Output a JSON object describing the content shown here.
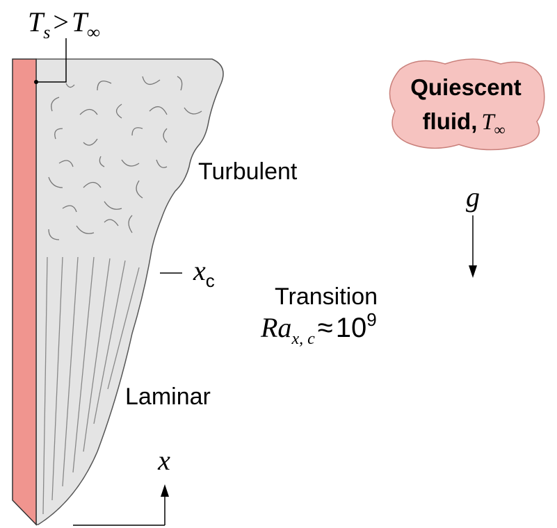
{
  "surface_condition": {
    "symbol": "T",
    "subscript": "s",
    "relation": ">",
    "symbol2": "T",
    "subscript2": "∞"
  },
  "ambient": {
    "line1": "Quiescent",
    "line2": "fluid,",
    "symbol": "T",
    "subscript": "∞"
  },
  "regions": {
    "turbulent": "Turbulent",
    "laminar": "Laminar"
  },
  "gravity": "g",
  "transition": {
    "marker": "x",
    "marker_subscript": "c",
    "label": "Transition",
    "criterion": "Ra",
    "criterion_subscript": "x, c",
    "relation": "≈",
    "value": "10",
    "exponent": "9"
  },
  "axis": "x"
}
